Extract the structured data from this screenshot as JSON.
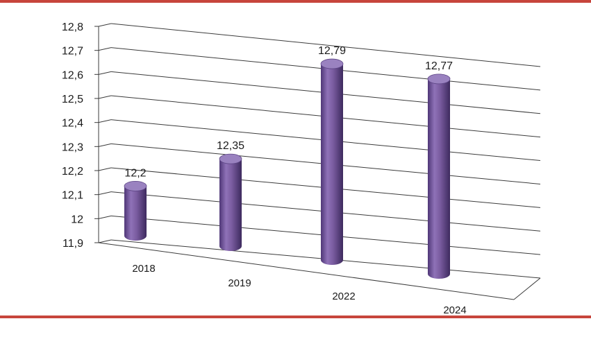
{
  "chart_data": {
    "type": "bar",
    "style": "3d-cylinder",
    "categories": [
      "2018",
      "2019",
      "2022",
      "2024"
    ],
    "values": [
      12.2,
      12.35,
      12.79,
      12.77
    ],
    "data_labels": [
      "12,2",
      "12,35",
      "12,79",
      "12,77"
    ],
    "y_ticks": [
      "11,9",
      "12",
      "12,1",
      "12,2",
      "12,3",
      "12,4",
      "12,5",
      "12,6",
      "12,7",
      "12,8"
    ],
    "ylim": [
      11.9,
      12.8
    ],
    "title": "",
    "xlabel": "",
    "ylabel": "",
    "grid": true,
    "legend": "none",
    "bar_color": "#7a5ca0",
    "frame_color": "#c7453c"
  }
}
